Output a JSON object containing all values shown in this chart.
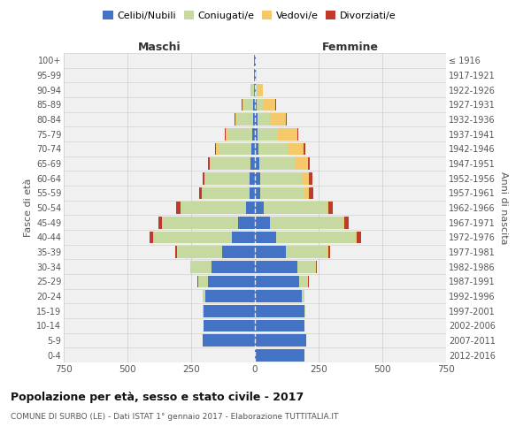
{
  "age_groups": [
    "100+",
    "95-99",
    "90-94",
    "85-89",
    "80-84",
    "75-79",
    "70-74",
    "65-69",
    "60-64",
    "55-59",
    "50-54",
    "45-49",
    "40-44",
    "35-39",
    "30-34",
    "25-29",
    "20-24",
    "15-19",
    "10-14",
    "5-9",
    "0-4"
  ],
  "birth_years": [
    "≤ 1916",
    "1917-1921",
    "1922-1926",
    "1927-1931",
    "1932-1936",
    "1937-1941",
    "1942-1946",
    "1947-1951",
    "1952-1956",
    "1957-1961",
    "1962-1966",
    "1967-1971",
    "1972-1976",
    "1977-1981",
    "1982-1986",
    "1987-1991",
    "1992-1996",
    "1997-2001",
    "2002-2006",
    "2007-2011",
    "2012-2016"
  ],
  "male_celibi": [
    2,
    2,
    3,
    6,
    8,
    12,
    14,
    18,
    20,
    22,
    35,
    65,
    90,
    130,
    170,
    185,
    195,
    200,
    200,
    205,
    0
  ],
  "male_coniugati": [
    0,
    2,
    12,
    35,
    60,
    95,
    130,
    155,
    175,
    185,
    255,
    295,
    305,
    175,
    80,
    38,
    10,
    4,
    0,
    0,
    0
  ],
  "male_vedovi": [
    0,
    0,
    3,
    8,
    10,
    8,
    8,
    4,
    3,
    3,
    3,
    3,
    3,
    2,
    2,
    0,
    0,
    0,
    0,
    0,
    0
  ],
  "male_divorziati": [
    0,
    0,
    0,
    2,
    3,
    4,
    4,
    6,
    8,
    10,
    15,
    15,
    15,
    6,
    3,
    2,
    0,
    0,
    0,
    0,
    0
  ],
  "female_celibi": [
    2,
    2,
    4,
    8,
    10,
    12,
    14,
    16,
    20,
    20,
    35,
    60,
    85,
    120,
    165,
    175,
    185,
    195,
    195,
    200,
    195
  ],
  "female_coniugati": [
    0,
    2,
    8,
    28,
    50,
    78,
    115,
    145,
    165,
    175,
    245,
    285,
    310,
    165,
    72,
    35,
    8,
    3,
    0,
    0,
    0
  ],
  "female_vedovi": [
    0,
    2,
    18,
    45,
    60,
    75,
    62,
    48,
    28,
    18,
    8,
    4,
    3,
    2,
    2,
    0,
    0,
    0,
    0,
    0,
    0
  ],
  "female_divorziati": [
    0,
    0,
    2,
    3,
    4,
    4,
    6,
    8,
    12,
    15,
    17,
    18,
    18,
    8,
    3,
    2,
    0,
    0,
    0,
    0,
    0
  ],
  "colors": {
    "celibi": "#4472c4",
    "coniugati": "#c5d9a0",
    "vedovi": "#f5c96a",
    "divorziati": "#c0392b"
  },
  "xlim": 750,
  "title": "Popolazione per età, sesso e stato civile - 2017",
  "subtitle": "COMUNE DI SURBO (LE) - Dati ISTAT 1° gennaio 2017 - Elaborazione TUTTITALIA.IT",
  "xlabel_left": "Maschi",
  "xlabel_right": "Femmine",
  "ylabel_left": "Fasce di età",
  "ylabel_right": "Anni di nascita",
  "background_color": "#f0f0f0"
}
